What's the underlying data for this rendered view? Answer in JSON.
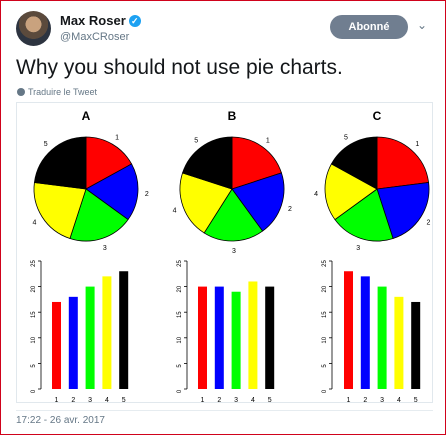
{
  "author": {
    "name": "Max Roser",
    "handle": "@MaxCRoser"
  },
  "follow_label": "Abonné",
  "tweet_text": "Why you should not use pie charts.",
  "translate_label": "Traduire le Tweet",
  "timestamp": "17:22 - 26 avr. 2017",
  "icons": {
    "verified": "verified-badge-icon",
    "chevron": "chevron-down-icon",
    "globe": "globe-icon"
  },
  "colors": {
    "follow_bg": "#707e90",
    "link": "#1da1f2",
    "series": [
      "#ff0000",
      "#0000ff",
      "#00ff00",
      "#ffff00",
      "#000000"
    ]
  },
  "chart_data": [
    {
      "panel": "A",
      "type": "pie",
      "categories": [
        "1",
        "2",
        "3",
        "4",
        "5"
      ],
      "values": [
        17,
        18,
        20,
        22,
        23
      ]
    },
    {
      "panel": "B",
      "type": "pie",
      "categories": [
        "1",
        "2",
        "3",
        "4",
        "5"
      ],
      "values": [
        20,
        20,
        19,
        21,
        20
      ]
    },
    {
      "panel": "C",
      "type": "pie",
      "categories": [
        "1",
        "2",
        "3",
        "4",
        "5"
      ],
      "values": [
        23,
        22,
        20,
        18,
        17
      ]
    },
    {
      "panel": "A",
      "type": "bar",
      "categories": [
        "1",
        "2",
        "3",
        "4",
        "5"
      ],
      "values": [
        17,
        18,
        20,
        22,
        23
      ],
      "ylim": [
        0,
        25
      ],
      "yticks": [
        0,
        5,
        10,
        15,
        20,
        25
      ]
    },
    {
      "panel": "B",
      "type": "bar",
      "categories": [
        "1",
        "2",
        "3",
        "4",
        "5"
      ],
      "values": [
        20,
        20,
        19,
        21,
        20
      ],
      "ylim": [
        0,
        25
      ],
      "yticks": [
        0,
        5,
        10,
        15,
        20,
        25
      ]
    },
    {
      "panel": "C",
      "type": "bar",
      "categories": [
        "1",
        "2",
        "3",
        "4",
        "5"
      ],
      "values": [
        23,
        22,
        20,
        18,
        17
      ],
      "ylim": [
        0,
        25
      ],
      "yticks": [
        0,
        5,
        10,
        15,
        20,
        25
      ]
    }
  ]
}
